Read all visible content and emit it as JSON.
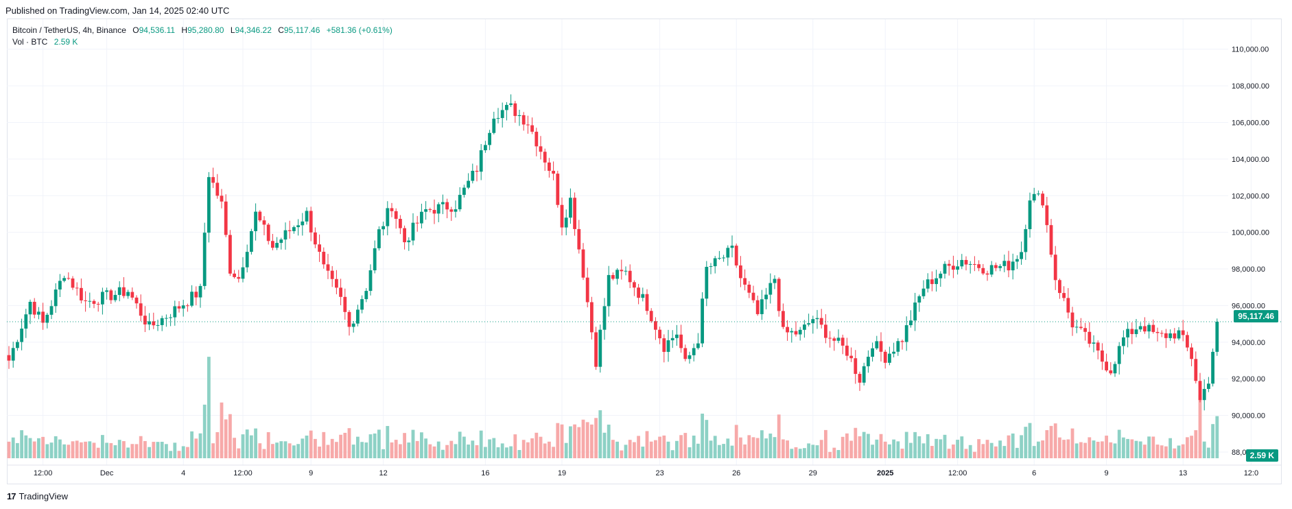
{
  "header": {
    "published": "Published on TradingView.com, Jan 14, 2025 02:40 UTC"
  },
  "legend": {
    "symbol": "Bitcoin / TetherUS, 4h, Binance",
    "o_key": "O",
    "o_val": "94,536.11",
    "h_key": "H",
    "h_val": "95,280.80",
    "l_key": "L",
    "l_val": "94,346.22",
    "c_key": "C",
    "c_val": "95,117.46",
    "change": "+581.36 (+0.61%)",
    "vol_label": "Vol · BTC",
    "vol_val": "2.59 K"
  },
  "price_tag": "95,117.46",
  "vol_tag": "2.59 K",
  "footer": {
    "brand": "TradingView",
    "logo": "17"
  },
  "colors": {
    "up": "#089981",
    "down": "#f23645",
    "up_vol": "#8dd1c5",
    "down_vol": "#f7a9a9",
    "grid": "#f0f3fa",
    "text": "#131722",
    "line": "#089981"
  },
  "chart_data": {
    "type": "candlestick",
    "ylim": [
      88000,
      111000
    ],
    "y_ticks": [
      "110,000.00",
      "108,000.00",
      "106,000.00",
      "104,000.00",
      "102,000.00",
      "100,000.00",
      "98,000.00",
      "96,000.00",
      "94,000.00",
      "92,000.00",
      "90,000.00",
      "88,000.00"
    ],
    "y_tick_values": [
      110000,
      108000,
      106000,
      104000,
      102000,
      100000,
      98000,
      96000,
      94000,
      92000,
      90000,
      88000
    ],
    "x_ticks": [
      "12:00",
      "Dec",
      "4",
      "12:00",
      "9",
      "12",
      "16",
      "19",
      "23",
      "26",
      "29",
      "2025",
      "12:00",
      "6",
      "9",
      "13",
      "12:0"
    ],
    "x_tick_bars": [
      8,
      23,
      41,
      55,
      71,
      88,
      112,
      130,
      153,
      171,
      189,
      206,
      223,
      241,
      258,
      276,
      292
    ],
    "anchors": [
      [
        0,
        93000
      ],
      [
        5,
        96200
      ],
      [
        8,
        95000
      ],
      [
        13,
        97800
      ],
      [
        18,
        96200
      ],
      [
        23,
        96500
      ],
      [
        28,
        96800
      ],
      [
        33,
        94800
      ],
      [
        38,
        95600
      ],
      [
        45,
        96800
      ],
      [
        47,
        103200
      ],
      [
        50,
        101500
      ],
      [
        52,
        98000
      ],
      [
        54,
        97500
      ],
      [
        58,
        101000
      ],
      [
        62,
        99200
      ],
      [
        70,
        101000
      ],
      [
        74,
        98000
      ],
      [
        78,
        96300
      ],
      [
        80,
        94800
      ],
      [
        84,
        97000
      ],
      [
        87,
        100000
      ],
      [
        90,
        101500
      ],
      [
        93,
        99500
      ],
      [
        98,
        101200
      ],
      [
        105,
        101500
      ],
      [
        110,
        103500
      ],
      [
        114,
        106500
      ],
      [
        118,
        106800
      ],
      [
        122,
        106000
      ],
      [
        128,
        103000
      ],
      [
        130,
        100500
      ],
      [
        132,
        101800
      ],
      [
        135,
        97800
      ],
      [
        138,
        93000
      ],
      [
        141,
        97500
      ],
      [
        145,
        97800
      ],
      [
        150,
        96000
      ],
      [
        154,
        93800
      ],
      [
        157,
        94500
      ],
      [
        159,
        92800
      ],
      [
        162,
        94200
      ],
      [
        164,
        98000
      ],
      [
        166,
        98300
      ],
      [
        170,
        99000
      ],
      [
        172,
        97500
      ],
      [
        176,
        95500
      ],
      [
        180,
        97500
      ],
      [
        182,
        94500
      ],
      [
        186,
        94500
      ],
      [
        189,
        95300
      ],
      [
        193,
        94300
      ],
      [
        197,
        93500
      ],
      [
        200,
        92000
      ],
      [
        203,
        94000
      ],
      [
        206,
        93200
      ],
      [
        210,
        94200
      ],
      [
        215,
        97000
      ],
      [
        220,
        98000
      ],
      [
        224,
        98500
      ],
      [
        230,
        98000
      ],
      [
        235,
        98200
      ],
      [
        238,
        99000
      ],
      [
        240,
        102000
      ],
      [
        243,
        101800
      ],
      [
        246,
        97500
      ],
      [
        250,
        95000
      ],
      [
        254,
        94000
      ],
      [
        257,
        93000
      ],
      [
        259,
        92500
      ],
      [
        262,
        94200
      ],
      [
        266,
        95000
      ],
      [
        270,
        94300
      ],
      [
        275,
        94500
      ],
      [
        278,
        93200
      ],
      [
        280,
        90800
      ],
      [
        282,
        92000
      ],
      [
        284,
        95100
      ]
    ],
    "last_close": 95117.46,
    "volume_tag_value": 2590
  }
}
